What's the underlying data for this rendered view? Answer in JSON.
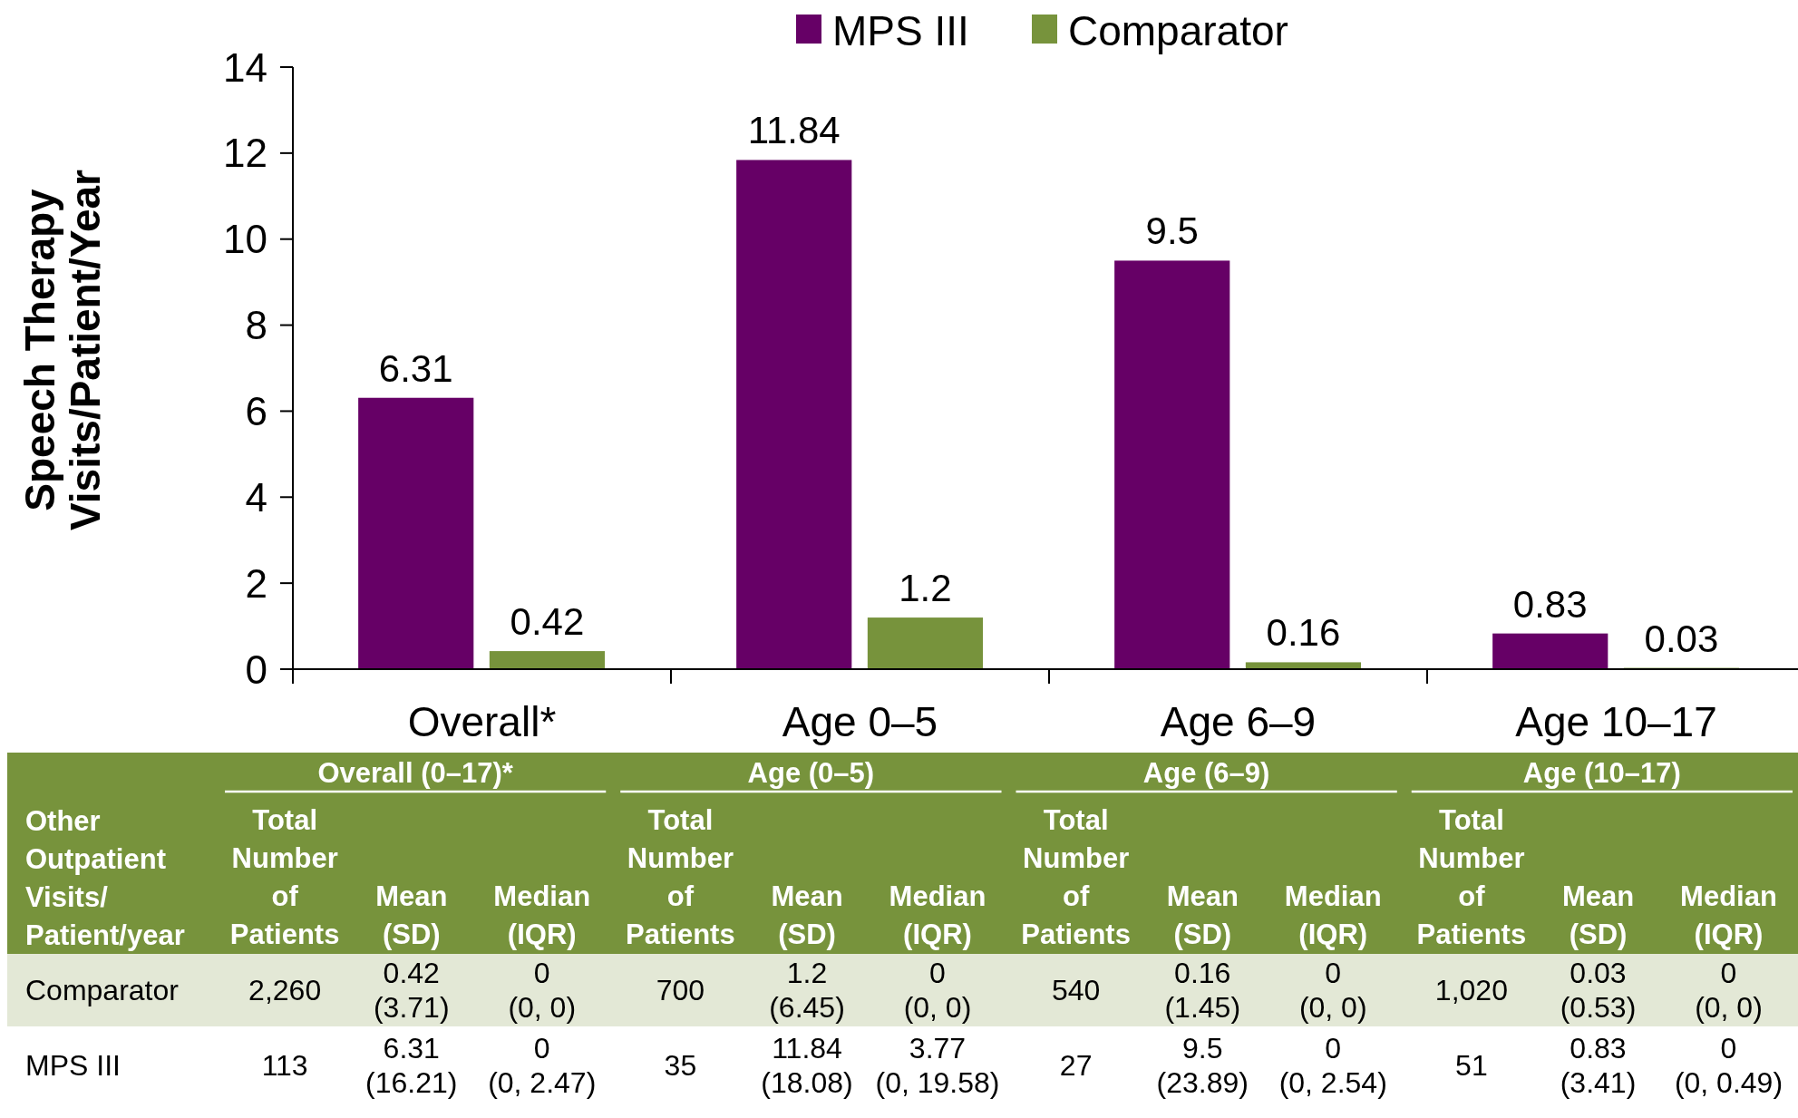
{
  "chart_data": {
    "type": "bar",
    "ylabel": "Speech Therapy\nVisits/Patient/Year",
    "categories": [
      "Overall*",
      "Age 0–5",
      "Age 6–9",
      "Age 10–17"
    ],
    "series": [
      {
        "name": "MPS III",
        "color": "#660066",
        "values": [
          6.31,
          11.84,
          9.5,
          0.83
        ],
        "value_labels": [
          "6.31",
          "11.84",
          "9.5",
          "0.83"
        ]
      },
      {
        "name": "Comparator",
        "color": "#77933c",
        "values": [
          0.42,
          1.2,
          0.16,
          0.03
        ],
        "value_labels": [
          "0.42",
          "1.2",
          "0.16",
          "0.03"
        ]
      }
    ],
    "ylim": [
      0,
      14
    ],
    "yticks": [
      0,
      2,
      4,
      6,
      8,
      10,
      12,
      14
    ],
    "grid": false,
    "legend": "top",
    "annotations": [
      "Overall (0–17)*",
      "Age (0–5)",
      "Age (6–9)",
      "Age (10–17)",
      "Other\nOutpatient\nVisits/\nPatient/year",
      "Total\nNumber\nof\nPatients",
      "Mean\n(SD)",
      "Median\n(IQR)",
      "Total\nNumber\nof\nPatients",
      "Mean\n(SD)",
      "Median\n(IQR)",
      "Total\nNumber\nof\nPatients",
      "Mean\n(SD)",
      "Median\n(IQR)",
      "Total\nNumber\nof\nPatients",
      "Mean\n(SD)",
      "Median\n(IQR)",
      "Comparator",
      "2,260",
      "0.42\n(3.71)",
      "0\n(0, 0)",
      "700",
      "1.2\n(6.45)",
      "0\n(0, 0)",
      "540",
      "0.16\n(1.45)",
      "0\n(0, 0)",
      "1,020",
      "0.03\n(0.53)",
      "0\n(0, 0)",
      "MPS III",
      "113",
      "6.31\n(16.21)",
      "0\n(0, 2.47)",
      "35",
      "11.84\n(18.08)",
      "3.77\n(0, 19.58)",
      "27",
      "9.5\n(23.89)",
      "0\n(0, 2.54)",
      "51",
      "0.83\n(3.41)",
      "0\n(0, 0.49)"
    ]
  }
}
